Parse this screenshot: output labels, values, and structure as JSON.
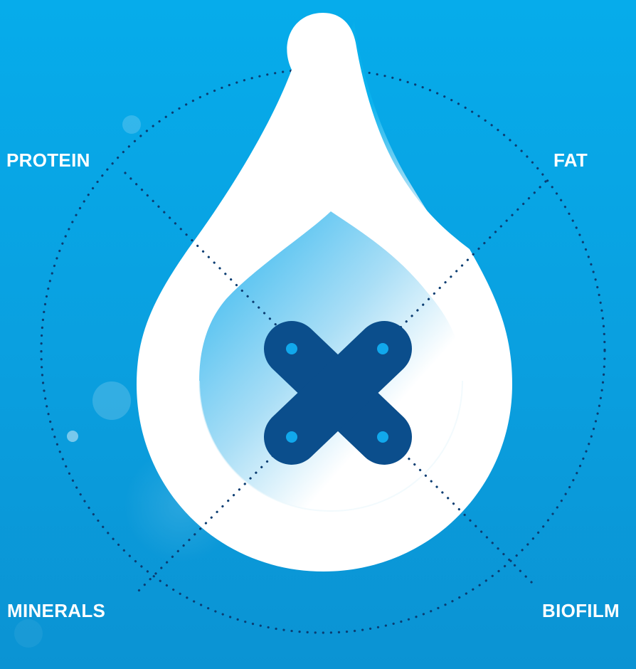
{
  "labels": {
    "top_left": "PROTEIN",
    "top_right": "FAT",
    "bottom_left": "MINERALS",
    "bottom_right": "BIOFILM"
  },
  "colors": {
    "background": "#0aa6e6",
    "drop": "#ffffff",
    "cross": "#0b4e8c",
    "cross_dots": "#11a8ec",
    "dotted_lines": "#0b3d72"
  },
  "icons": {
    "center": "cross-x-icon",
    "drop": "water-drop-icon"
  }
}
